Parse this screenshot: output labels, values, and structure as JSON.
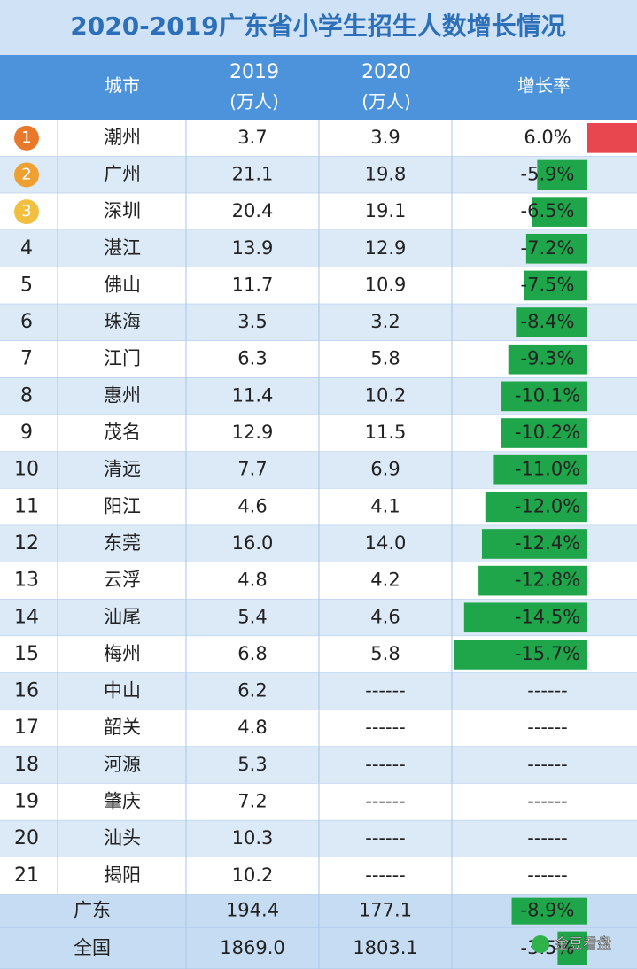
{
  "title": "2020-2019广东省小学生招生人数增长情况",
  "header": {
    "city": "城市",
    "y2019": [
      "2019",
      "(万人)"
    ],
    "y2020": [
      "2020",
      "(万人)"
    ],
    "growth": "增长率"
  },
  "rows": [
    {
      "rank": "1",
      "city": "潮州",
      "y2019": "3.7",
      "y2020": "3.9",
      "growth": "6.0%",
      "growth_pct": 6.0
    },
    {
      "rank": "2",
      "city": "广州",
      "y2019": "21.1",
      "y2020": "19.8",
      "growth": "-5.9%",
      "growth_pct": -5.9
    },
    {
      "rank": "3",
      "city": "深圳",
      "y2019": "20.4",
      "y2020": "19.1",
      "growth": "-6.5%",
      "growth_pct": -6.5
    },
    {
      "rank": "4",
      "city": "湛江",
      "y2019": "13.9",
      "y2020": "12.9",
      "growth": "-7.2%",
      "growth_pct": -7.2
    },
    {
      "rank": "5",
      "city": "佛山",
      "y2019": "11.7",
      "y2020": "10.9",
      "growth": "-7.5%",
      "growth_pct": -7.5
    },
    {
      "rank": "6",
      "city": "珠海",
      "y2019": "3.5",
      "y2020": "3.2",
      "growth": "-8.4%",
      "growth_pct": -8.4
    },
    {
      "rank": "7",
      "city": "江门",
      "y2019": "6.3",
      "y2020": "5.8",
      "growth": "-9.3%",
      "growth_pct": -9.3
    },
    {
      "rank": "8",
      "city": "惠州",
      "y2019": "11.4",
      "y2020": "10.2",
      "growth": "-10.1%",
      "growth_pct": -10.1
    },
    {
      "rank": "9",
      "city": "茂名",
      "y2019": "12.9",
      "y2020": "11.5",
      "growth": "-10.2%",
      "growth_pct": -10.2
    },
    {
      "rank": "10",
      "city": "清远",
      "y2019": "7.7",
      "y2020": "6.9",
      "growth": "-11.0%",
      "growth_pct": -11.0
    },
    {
      "rank": "11",
      "city": "阳江",
      "y2019": "4.6",
      "y2020": "4.1",
      "growth": "-12.0%",
      "growth_pct": -12.0
    },
    {
      "rank": "12",
      "city": "东莞",
      "y2019": "16.0",
      "y2020": "14.0",
      "growth": "-12.4%",
      "growth_pct": -12.4
    },
    {
      "rank": "13",
      "city": "云浮",
      "y2019": "4.8",
      "y2020": "4.2",
      "growth": "-12.8%",
      "growth_pct": -12.8
    },
    {
      "rank": "14",
      "city": "汕尾",
      "y2019": "5.4",
      "y2020": "4.6",
      "growth": "-14.5%",
      "growth_pct": -14.5
    },
    {
      "rank": "15",
      "city": "梅州",
      "y2019": "6.8",
      "y2020": "5.8",
      "growth": "-15.7%",
      "growth_pct": -15.7
    },
    {
      "rank": "16",
      "city": "中山",
      "y2019": "6.2",
      "y2020": "------",
      "growth": "------"
    },
    {
      "rank": "17",
      "city": "韶关",
      "y2019": "4.8",
      "y2020": "------",
      "growth": "------"
    },
    {
      "rank": "18",
      "city": "河源",
      "y2019": "5.3",
      "y2020": "------",
      "growth": "------"
    },
    {
      "rank": "19",
      "city": "肇庆",
      "y2019": "7.2",
      "y2020": "------",
      "growth": "------"
    },
    {
      "rank": "20",
      "city": "汕头",
      "y2019": "10.3",
      "y2020": "------",
      "growth": "------"
    },
    {
      "rank": "21",
      "city": "揭阳",
      "y2019": "10.2",
      "y2020": "------",
      "growth": "------"
    }
  ],
  "totals": [
    {
      "city": "广东",
      "y2019": "194.4",
      "y2020": "177.1",
      "growth": "-8.9%",
      "growth_pct": -8.9
    },
    {
      "city": "全国",
      "y2019": "1869.0",
      "y2020": "1803.1",
      "growth": "-3.5%",
      "growth_pct": -3.5
    }
  ],
  "watermark": "金豆看盘"
}
